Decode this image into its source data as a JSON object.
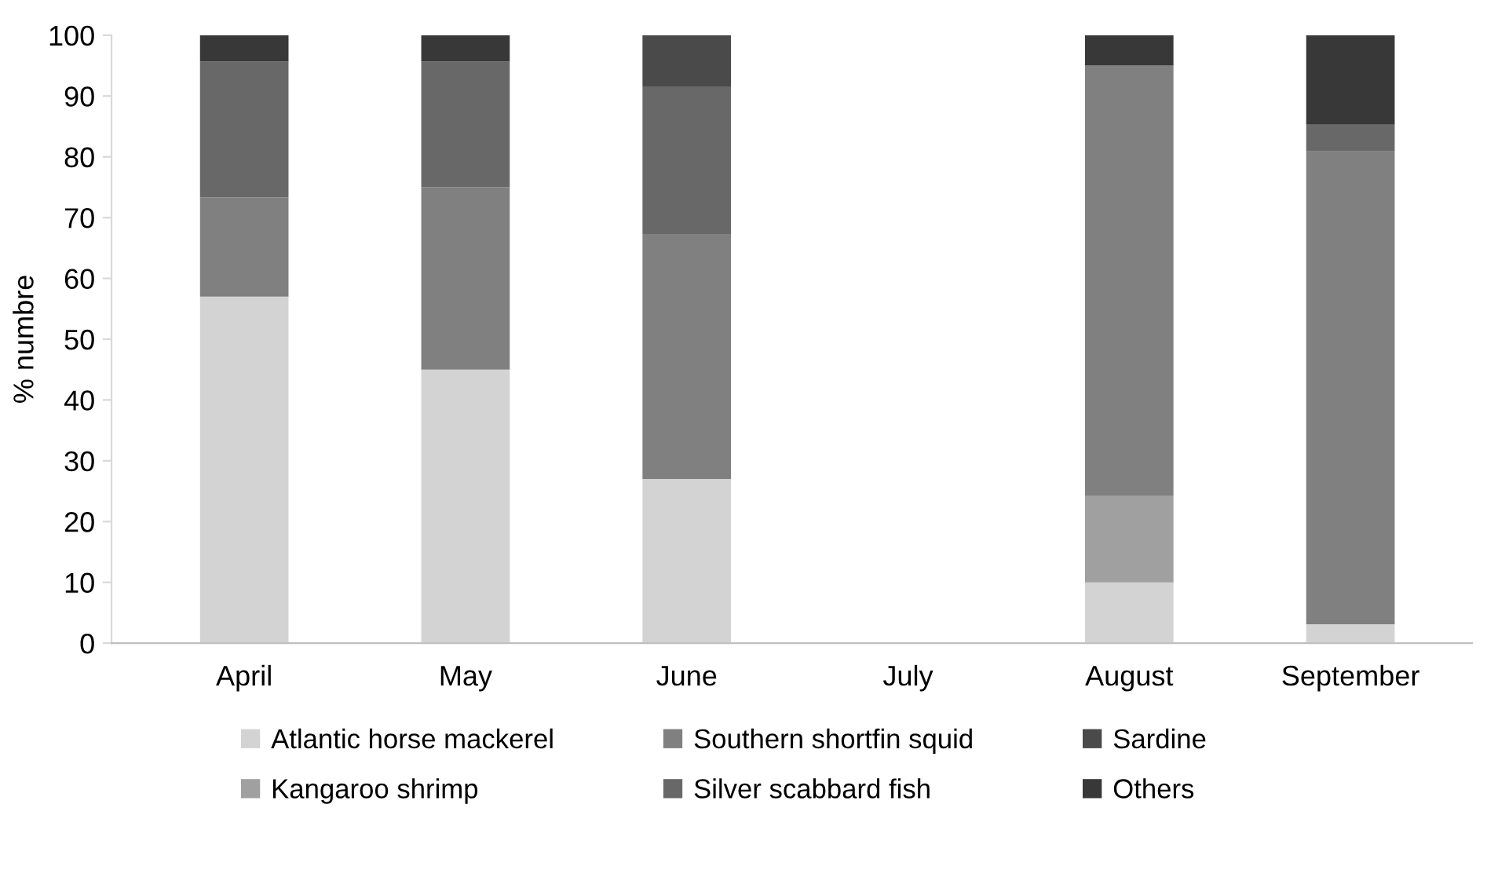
{
  "chart_data": {
    "type": "bar",
    "stacked": true,
    "ylabel": "% numbre",
    "categories": [
      "April",
      "May",
      "June",
      "July",
      "August",
      "September"
    ],
    "series": [
      {
        "name": "Atlantic horse mackerel",
        "color": "#d3d3d3",
        "values": [
          57,
          45,
          27,
          null,
          10,
          3.1
        ]
      },
      {
        "name": "Kangaroo shrimp",
        "color": "#a0a0a0",
        "values": [
          0,
          0,
          0,
          null,
          14.2,
          0
        ]
      },
      {
        "name": "Southern shortfin squid",
        "color": "#808080",
        "values": [
          16.3,
          30,
          40.3,
          null,
          70.8,
          77.8
        ]
      },
      {
        "name": "Silver scabbard fish",
        "color": "#686868",
        "values": [
          22.4,
          20.7,
          24.3,
          null,
          0,
          4.4
        ]
      },
      {
        "name": "Sardine",
        "color": "#4a4a4a",
        "values": [
          0,
          0,
          8.4,
          null,
          0,
          0
        ]
      },
      {
        "name": "Others",
        "color": "#383838",
        "values": [
          4.3,
          4.3,
          0,
          null,
          5,
          14.7
        ]
      }
    ],
    "ylim": [
      0,
      100
    ],
    "yticks": [
      0,
      10,
      20,
      30,
      40,
      50,
      60,
      70,
      80,
      90,
      100
    ],
    "grid": false,
    "legend": "bottom"
  }
}
